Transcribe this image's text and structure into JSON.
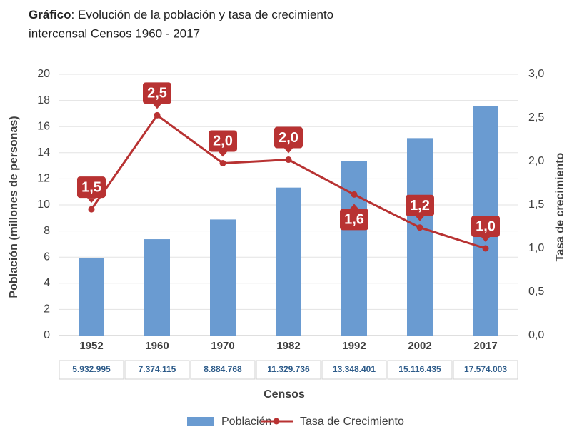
{
  "chart_data": {
    "type": "bar-line",
    "title_prefix": "Gráfico",
    "title": ": Evolución de la población y tasa de crecimiento",
    "subtitle": "intercensal Censos 1960 - 2017",
    "x_label": "Censos",
    "y_label": "Población (millones de personas)",
    "y2_label": "Tasa de crecimiento",
    "categories": [
      "1952",
      "1960",
      "1970",
      "1982",
      "1992",
      "2002",
      "2017"
    ],
    "series": [
      {
        "name": "Población",
        "type": "bar",
        "color": "#6a9bd1",
        "values": [
          5.932995,
          7.374115,
          8.884768,
          11.329736,
          13.348401,
          15.116435,
          17.574003
        ],
        "value_labels": [
          "5.932.995",
          "7.374.115",
          "8.884.768",
          "11.329.736",
          "13.348.401",
          "15.116.435",
          "17.574.003"
        ]
      },
      {
        "name": "Tasa de Crecimiento",
        "type": "line",
        "axis": "y2",
        "color": "#b83232",
        "values": [
          1.45,
          2.53,
          1.98,
          2.02,
          1.62,
          1.24,
          1.0
        ],
        "value_labels": [
          "1,5",
          "2,5",
          "2,0",
          "2,0",
          "1,6",
          "1,2",
          "1,0"
        ]
      }
    ],
    "ylim": [
      0,
      20
    ],
    "yticks": [
      0,
      2,
      4,
      6,
      8,
      10,
      12,
      14,
      16,
      18,
      20
    ],
    "y2lim": [
      0,
      3
    ],
    "y2ticks": [
      {
        "value": 0,
        "label": "0,0"
      },
      {
        "value": 0.5,
        "label": "0,5"
      },
      {
        "value": 1,
        "label": "1,0"
      },
      {
        "value": 1.5,
        "label": "1,5"
      },
      {
        "value": 2,
        "label": "2,0"
      },
      {
        "value": 2.5,
        "label": "2,5"
      },
      {
        "value": 3,
        "label": "3,0"
      }
    ],
    "grid": true
  }
}
